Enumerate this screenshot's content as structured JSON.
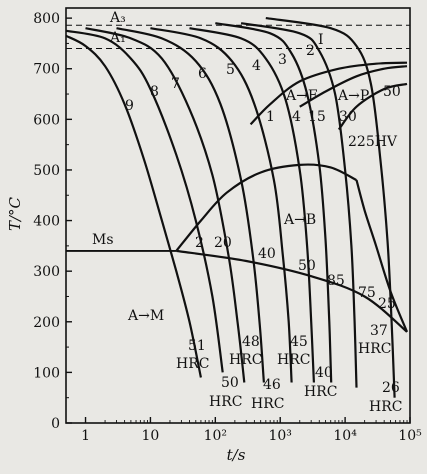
{
  "chart_data": {
    "type": "line",
    "title": "",
    "xlabel": "t/s",
    "ylabel": "T/°C",
    "xscale": "log",
    "xlim": [
      0.5,
      100000
    ],
    "ylim": [
      0,
      820
    ],
    "x_ticks": [
      {
        "value": 1,
        "label": "1"
      },
      {
        "value": 10,
        "label": "10"
      },
      {
        "value": 100,
        "label": "10²"
      },
      {
        "value": 1000,
        "label": "10³"
      },
      {
        "value": 10000,
        "label": "10⁴"
      },
      {
        "value": 100000,
        "label": "10⁵"
      }
    ],
    "y_ticks": [
      0,
      100,
      200,
      300,
      400,
      500,
      600,
      700,
      800
    ],
    "grid": false,
    "reference_lines": [
      {
        "label": "A₃",
        "y": 786,
        "style": "dashed"
      },
      {
        "label": "A₁",
        "y": 740,
        "style": "dashed"
      },
      {
        "label": "Ms",
        "y": 340,
        "style": "solid"
      }
    ],
    "phase_region_lines": [
      {
        "name": "ferrite-start",
        "points": [
          [
            350,
            590
          ],
          [
            700,
            630
          ],
          [
            2000,
            675
          ],
          [
            8000,
            700
          ],
          [
            30000,
            710
          ],
          [
            90000,
            712
          ]
        ]
      },
      {
        "name": "pearlite-start",
        "points": [
          [
            2000,
            625
          ],
          [
            5000,
            655
          ],
          [
            15000,
            685
          ],
          [
            40000,
            700
          ],
          [
            90000,
            705
          ]
        ]
      },
      {
        "name": "pearlite-finish",
        "points": [
          [
            8000,
            580
          ],
          [
            15000,
            625
          ],
          [
            40000,
            660
          ],
          [
            90000,
            670
          ]
        ]
      },
      {
        "name": "bainite-start",
        "points": [
          [
            25,
            340
          ],
          [
            60,
            400
          ],
          [
            150,
            455
          ],
          [
            500,
            495
          ],
          [
            2000,
            510
          ],
          [
            6000,
            505
          ],
          [
            15000,
            480
          ]
        ]
      },
      {
        "name": "bainite-finish",
        "points": [
          [
            15000,
            480
          ],
          [
            20000,
            420
          ],
          [
            30000,
            350
          ],
          [
            50000,
            260
          ],
          [
            90000,
            180
          ]
        ]
      },
      {
        "name": "martensite-end-line",
        "points": [
          [
            25,
            340
          ],
          [
            300,
            320
          ],
          [
            3000,
            290
          ],
          [
            20000,
            250
          ],
          [
            90000,
            180
          ]
        ]
      }
    ],
    "cooling_curves": [
      {
        "label": "9",
        "points": [
          [
            0.5,
            765
          ],
          [
            1,
            745
          ],
          [
            2,
            705
          ],
          [
            4,
            630
          ],
          [
            8,
            520
          ],
          [
            15,
            400
          ],
          [
            25,
            300
          ],
          [
            40,
            200
          ],
          [
            60,
            90
          ]
        ]
      },
      {
        "label": "8",
        "points": [
          [
            0.5,
            775
          ],
          [
            2,
            760
          ],
          [
            5,
            720
          ],
          [
            10,
            660
          ],
          [
            25,
            530
          ],
          [
            50,
            400
          ],
          [
            90,
            250
          ],
          [
            130,
            100
          ]
        ]
      },
      {
        "label": "7",
        "points": [
          [
            1,
            780
          ],
          [
            5,
            760
          ],
          [
            15,
            720
          ],
          [
            40,
            620
          ],
          [
            90,
            490
          ],
          [
            160,
            330
          ],
          [
            220,
            200
          ],
          [
            280,
            80
          ]
        ]
      },
      {
        "label": "6",
        "points": [
          [
            3,
            780
          ],
          [
            15,
            760
          ],
          [
            50,
            715
          ],
          [
            120,
            630
          ],
          [
            250,
            480
          ],
          [
            380,
            330
          ],
          [
            480,
            200
          ],
          [
            560,
            80
          ]
        ]
      },
      {
        "label": "5",
        "points": [
          [
            10,
            780
          ],
          [
            60,
            760
          ],
          [
            180,
            715
          ],
          [
            400,
            630
          ],
          [
            800,
            480
          ],
          [
            1100,
            330
          ],
          [
            1350,
            200
          ],
          [
            1500,
            80
          ]
        ]
      },
      {
        "label": "4",
        "points": [
          [
            40,
            780
          ],
          [
            250,
            760
          ],
          [
            600,
            720
          ],
          [
            1200,
            640
          ],
          [
            2000,
            500
          ],
          [
            2600,
            350
          ],
          [
            3000,
            200
          ],
          [
            3300,
            80
          ]
        ]
      },
      {
        "label": "3",
        "points": [
          [
            100,
            790
          ],
          [
            700,
            770
          ],
          [
            1500,
            730
          ],
          [
            2600,
            650
          ],
          [
            4000,
            510
          ],
          [
            5000,
            360
          ],
          [
            5700,
            200
          ],
          [
            6100,
            80
          ]
        ]
      },
      {
        "label": "2",
        "points": [
          [
            250,
            790
          ],
          [
            2000,
            770
          ],
          [
            4000,
            735
          ],
          [
            7000,
            650
          ],
          [
            10000,
            500
          ],
          [
            12500,
            350
          ],
          [
            14000,
            200
          ],
          [
            15000,
            70
          ]
        ]
      },
      {
        "label": "1",
        "points": [
          [
            600,
            800
          ],
          [
            6000,
            780
          ],
          [
            15000,
            745
          ],
          [
            25000,
            670
          ],
          [
            35000,
            520
          ],
          [
            45000,
            360
          ],
          [
            52000,
            200
          ],
          [
            58000,
            50
          ]
        ]
      }
    ],
    "annotations": [
      {
        "text": "A₃"
      },
      {
        "text": "A₁"
      },
      {
        "text": "Ms"
      },
      {
        "text": "A→F"
      },
      {
        "text": "A→P"
      },
      {
        "text": "A→B"
      },
      {
        "text": "A→M"
      },
      {
        "text": "I"
      },
      {
        "text": "1"
      },
      {
        "text": "4"
      },
      {
        "text": "15"
      },
      {
        "text": "30"
      },
      {
        "text": "50"
      },
      {
        "text": "225HV"
      },
      {
        "text": "2"
      },
      {
        "text": "20"
      },
      {
        "text": "40"
      },
      {
        "text": "50"
      },
      {
        "text": "85"
      },
      {
        "text": "75"
      },
      {
        "text": "25"
      },
      {
        "text": "51"
      },
      {
        "text": "HRC"
      },
      {
        "text": "50"
      },
      {
        "text": "HRC"
      },
      {
        "text": "48"
      },
      {
        "text": "HRC"
      },
      {
        "text": "46"
      },
      {
        "text": "HRC"
      },
      {
        "text": "45"
      },
      {
        "text": "HRC"
      },
      {
        "text": "40"
      },
      {
        "text": "HRC"
      },
      {
        "text": "37"
      },
      {
        "text": "HRC"
      },
      {
        "text": "26"
      },
      {
        "text": "HRC"
      }
    ]
  }
}
